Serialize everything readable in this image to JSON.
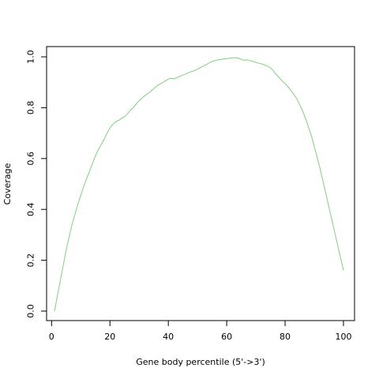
{
  "chart_data": {
    "type": "line",
    "title": "",
    "xlabel": "Gene body percentile (5'->3')",
    "ylabel": "Coverage",
    "xlim": [
      1,
      100
    ],
    "ylim": [
      0,
      1
    ],
    "xticks": [
      0,
      20,
      40,
      60,
      80,
      100
    ],
    "xtick_labels": [
      "0",
      "20",
      "40",
      "60",
      "80",
      "100"
    ],
    "yticks": [
      0,
      0.2,
      0.4,
      0.6,
      0.8,
      1.0
    ],
    "ytick_labels": [
      "0.0",
      "0.2",
      "0.4",
      "0.6",
      "0.8",
      "1.0"
    ],
    "grid": false,
    "series": [
      {
        "color": "#7fd07f",
        "x": [
          1,
          2,
          3,
          4,
          5,
          6,
          7,
          8,
          9,
          10,
          11,
          12,
          13,
          14,
          15,
          16,
          17,
          18,
          19,
          20,
          21,
          22,
          23,
          24,
          25,
          26,
          27,
          28,
          29,
          30,
          31,
          32,
          33,
          34,
          35,
          36,
          37,
          38,
          39,
          40,
          41,
          42,
          43,
          44,
          45,
          46,
          47,
          48,
          49,
          50,
          51,
          52,
          53,
          54,
          55,
          56,
          57,
          58,
          59,
          60,
          61,
          62,
          63,
          64,
          65,
          66,
          67,
          68,
          69,
          70,
          71,
          72,
          73,
          74,
          75,
          76,
          77,
          78,
          79,
          80,
          81,
          82,
          83,
          84,
          85,
          86,
          87,
          88,
          89,
          90,
          91,
          92,
          93,
          94,
          95,
          96,
          97,
          98,
          99,
          100
        ],
        "values": [
          0.0,
          0.06,
          0.12,
          0.18,
          0.24,
          0.29,
          0.34,
          0.38,
          0.42,
          0.455,
          0.49,
          0.52,
          0.55,
          0.58,
          0.61,
          0.635,
          0.655,
          0.675,
          0.7,
          0.72,
          0.735,
          0.745,
          0.75,
          0.758,
          0.765,
          0.775,
          0.79,
          0.8,
          0.815,
          0.828,
          0.838,
          0.848,
          0.856,
          0.865,
          0.875,
          0.885,
          0.892,
          0.898,
          0.905,
          0.913,
          0.915,
          0.914,
          0.918,
          0.924,
          0.928,
          0.933,
          0.938,
          0.942,
          0.946,
          0.952,
          0.958,
          0.964,
          0.97,
          0.976,
          0.982,
          0.985,
          0.988,
          0.99,
          0.992,
          0.993,
          0.994,
          0.996,
          0.997,
          0.995,
          0.99,
          0.987,
          0.988,
          0.985,
          0.982,
          0.978,
          0.975,
          0.972,
          0.968,
          0.964,
          0.957,
          0.945,
          0.93,
          0.918,
          0.905,
          0.895,
          0.882,
          0.868,
          0.852,
          0.835,
          0.812,
          0.788,
          0.758,
          0.725,
          0.69,
          0.648,
          0.605,
          0.56,
          0.51,
          0.46,
          0.41,
          0.36,
          0.31,
          0.26,
          0.21,
          0.16
        ]
      }
    ]
  }
}
